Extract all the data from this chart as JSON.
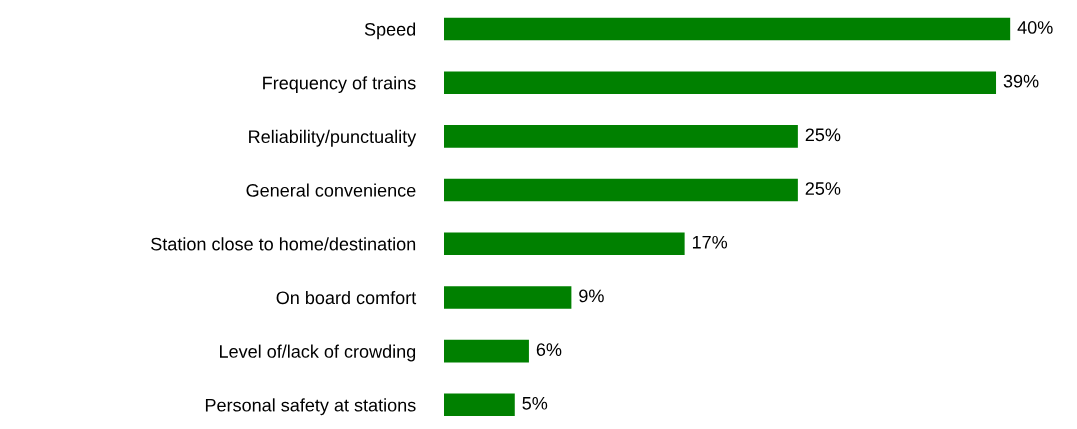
{
  "chart_data": {
    "type": "bar",
    "orientation": "horizontal",
    "categories": [
      "Speed",
      "Frequency of trains",
      "Reliability/punctuality",
      "General convenience",
      "Station close to home/destination",
      "On board comfort",
      "Level of/lack of crowding",
      "Personal safety at stations"
    ],
    "values": [
      40,
      39,
      25,
      25,
      17,
      9,
      6,
      5
    ],
    "value_labels": [
      "40%",
      "39%",
      "25%",
      "25%",
      "17%",
      "9%",
      "6%",
      "5%"
    ],
    "color": "#008000",
    "grid": false,
    "legend": false
  }
}
